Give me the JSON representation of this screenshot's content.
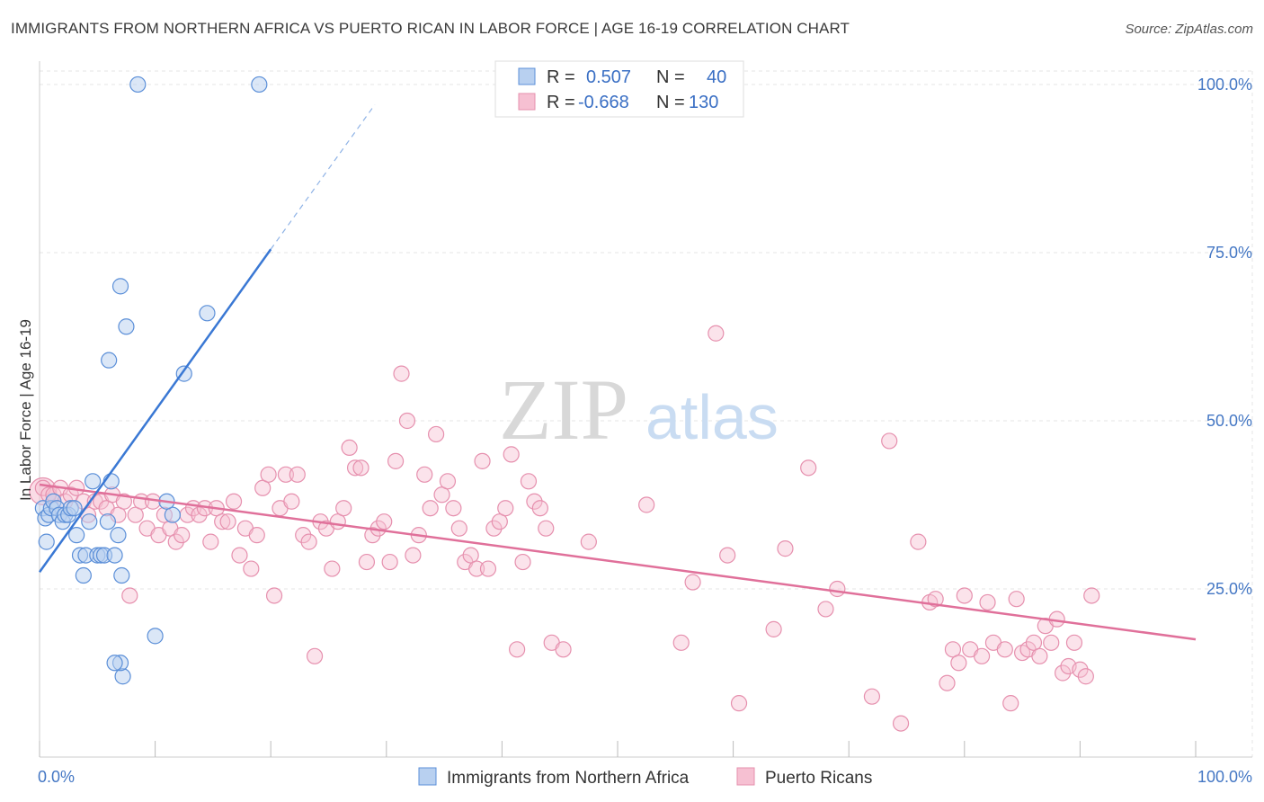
{
  "title": "IMMIGRANTS FROM NORTHERN AFRICA VS PUERTO RICAN IN LABOR FORCE | AGE 16-19 CORRELATION CHART",
  "source": "Source: ZipAtlas.com",
  "watermark": {
    "zip": "ZIP",
    "atlas": "atlas"
  },
  "colors": {
    "blue": "#3a78d4",
    "blue_fill": "#b8d0f0",
    "pink": "#e0709a",
    "pink_fill": "#f6c0d2",
    "axis_label": "#4477c4"
  },
  "chart_data": {
    "type": "scatter",
    "title": "IMMIGRANTS FROM NORTHERN AFRICA VS PUERTO RICAN IN LABOR FORCE | AGE 16-19 CORRELATION CHART",
    "xlabel": "",
    "ylabel": "In Labor Force | Age 16-19",
    "xlim": [
      0,
      100
    ],
    "ylim": [
      0,
      102
    ],
    "x_tick_labels": [
      "0.0%",
      "100.0%"
    ],
    "y_ticks": [
      25,
      50,
      75,
      100
    ],
    "y_tick_labels": [
      "25.0%",
      "50.0%",
      "75.0%",
      "100.0%"
    ],
    "grid": true,
    "legend": {
      "position": "top-center",
      "entries": [
        {
          "r_label": "R =",
          "r": "0.507",
          "n_label": "N =",
          "n": "40"
        },
        {
          "r_label": "R =",
          "r": "-0.668",
          "n_label": "N =",
          "n": "130"
        }
      ]
    },
    "series": [
      {
        "name": "Immigrants from Northern Africa",
        "color": "#3a78d4",
        "trend": {
          "x0": 0,
          "y0": 27.5,
          "x1": 20,
          "y1": 75.5,
          "dash_to_x": 29,
          "dash_to_y": 97
        },
        "points": [
          [
            0.3,
            37
          ],
          [
            0.5,
            35.5
          ],
          [
            0.6,
            32
          ],
          [
            0.8,
            36
          ],
          [
            1.0,
            37
          ],
          [
            1.2,
            38
          ],
          [
            1.5,
            37
          ],
          [
            1.7,
            36
          ],
          [
            2.0,
            35
          ],
          [
            2.2,
            36
          ],
          [
            2.5,
            36
          ],
          [
            2.7,
            37
          ],
          [
            3.0,
            37
          ],
          [
            3.2,
            33
          ],
          [
            3.5,
            30
          ],
          [
            3.8,
            27
          ],
          [
            4.0,
            30
          ],
          [
            4.3,
            35
          ],
          [
            4.6,
            41
          ],
          [
            5.0,
            30
          ],
          [
            5.3,
            30
          ],
          [
            5.6,
            30
          ],
          [
            5.9,
            35
          ],
          [
            6.2,
            41
          ],
          [
            6.5,
            30
          ],
          [
            6.8,
            33
          ],
          [
            7.1,
            27
          ],
          [
            7.5,
            64
          ],
          [
            7.2,
            12
          ],
          [
            7.0,
            14
          ],
          [
            6.5,
            14
          ],
          [
            6.0,
            59
          ],
          [
            7.0,
            70
          ],
          [
            11.5,
            36
          ],
          [
            10.0,
            18
          ],
          [
            11.0,
            38
          ],
          [
            8.5,
            100
          ],
          [
            19.0,
            100
          ],
          [
            14.5,
            66
          ],
          [
            12.5,
            57
          ]
        ]
      },
      {
        "name": "Puerto Ricans",
        "color": "#e0709a",
        "trend": {
          "x0": 0,
          "y0": 40.5,
          "x1": 100,
          "y1": 17.5
        },
        "points": [
          [
            0.3,
            40
          ],
          [
            0.8,
            39
          ],
          [
            1.2,
            39
          ],
          [
            1.8,
            40
          ],
          [
            2.2,
            38
          ],
          [
            2.7,
            39
          ],
          [
            3.2,
            40
          ],
          [
            3.8,
            38
          ],
          [
            4.2,
            36
          ],
          [
            4.8,
            38
          ],
          [
            5.3,
            38
          ],
          [
            5.8,
            37
          ],
          [
            6.3,
            39
          ],
          [
            6.8,
            36
          ],
          [
            7.3,
            38
          ],
          [
            7.8,
            24
          ],
          [
            8.3,
            36
          ],
          [
            8.8,
            38
          ],
          [
            9.3,
            34
          ],
          [
            9.8,
            38
          ],
          [
            10.3,
            33
          ],
          [
            10.8,
            36
          ],
          [
            11.3,
            34
          ],
          [
            11.8,
            32
          ],
          [
            12.3,
            33
          ],
          [
            12.8,
            36
          ],
          [
            13.3,
            37
          ],
          [
            13.8,
            36
          ],
          [
            14.3,
            37
          ],
          [
            14.8,
            32
          ],
          [
            15.3,
            37
          ],
          [
            15.8,
            35
          ],
          [
            16.3,
            35
          ],
          [
            16.8,
            38
          ],
          [
            17.3,
            30
          ],
          [
            17.8,
            34
          ],
          [
            18.3,
            28
          ],
          [
            18.8,
            33
          ],
          [
            19.3,
            40
          ],
          [
            19.8,
            42
          ],
          [
            20.3,
            24
          ],
          [
            20.8,
            37
          ],
          [
            21.3,
            42
          ],
          [
            21.8,
            38
          ],
          [
            22.3,
            42
          ],
          [
            22.8,
            33
          ],
          [
            23.3,
            32
          ],
          [
            23.8,
            15
          ],
          [
            24.3,
            35
          ],
          [
            24.8,
            34
          ],
          [
            25.3,
            28
          ],
          [
            25.8,
            35
          ],
          [
            26.3,
            37
          ],
          [
            26.8,
            46
          ],
          [
            27.3,
            43
          ],
          [
            27.8,
            43
          ],
          [
            28.3,
            29
          ],
          [
            28.8,
            33
          ],
          [
            29.3,
            34
          ],
          [
            29.8,
            35
          ],
          [
            30.3,
            29
          ],
          [
            30.8,
            44
          ],
          [
            31.3,
            57
          ],
          [
            31.8,
            50
          ],
          [
            32.3,
            30
          ],
          [
            32.8,
            33
          ],
          [
            33.3,
            42
          ],
          [
            33.8,
            37
          ],
          [
            34.3,
            48
          ],
          [
            34.8,
            39
          ],
          [
            35.3,
            41
          ],
          [
            35.8,
            37
          ],
          [
            36.3,
            34
          ],
          [
            36.8,
            29
          ],
          [
            37.3,
            30
          ],
          [
            37.8,
            28
          ],
          [
            38.3,
            44
          ],
          [
            38.8,
            28
          ],
          [
            39.3,
            34
          ],
          [
            39.8,
            35
          ],
          [
            40.3,
            37
          ],
          [
            40.8,
            45
          ],
          [
            41.3,
            16
          ],
          [
            41.8,
            29
          ],
          [
            42.3,
            41
          ],
          [
            42.8,
            38
          ],
          [
            43.3,
            37
          ],
          [
            43.8,
            34
          ],
          [
            44.3,
            17
          ],
          [
            45.3,
            16
          ],
          [
            47.5,
            32
          ],
          [
            52.5,
            37.5
          ],
          [
            55.5,
            17
          ],
          [
            56.5,
            26
          ],
          [
            58.5,
            63
          ],
          [
            59.5,
            30
          ],
          [
            60.5,
            8
          ],
          [
            63.5,
            19
          ],
          [
            64.5,
            31
          ],
          [
            66.5,
            43
          ],
          [
            68.0,
            22
          ],
          [
            69.0,
            25
          ],
          [
            72.0,
            9
          ],
          [
            73.5,
            47
          ],
          [
            74.5,
            5
          ],
          [
            76.0,
            32
          ],
          [
            77.0,
            23
          ],
          [
            77.5,
            23.5
          ],
          [
            78.5,
            11
          ],
          [
            79.0,
            16
          ],
          [
            79.5,
            14
          ],
          [
            80.0,
            24
          ],
          [
            80.5,
            16
          ],
          [
            81.5,
            15
          ],
          [
            82.0,
            23
          ],
          [
            82.5,
            17
          ],
          [
            83.5,
            16
          ],
          [
            84.0,
            8
          ],
          [
            84.5,
            23.5
          ],
          [
            85.0,
            15.5
          ],
          [
            85.5,
            16
          ],
          [
            86.0,
            17
          ],
          [
            86.5,
            15
          ],
          [
            87.0,
            19.5
          ],
          [
            87.5,
            17
          ],
          [
            88.0,
            20.5
          ],
          [
            88.5,
            12.5
          ],
          [
            89.0,
            13.5
          ],
          [
            89.5,
            17
          ],
          [
            90.0,
            13
          ],
          [
            90.5,
            12
          ],
          [
            91.0,
            24
          ]
        ]
      }
    ],
    "bottom_legend": [
      "Immigrants from Northern Africa",
      "Puerto Ricans"
    ]
  }
}
